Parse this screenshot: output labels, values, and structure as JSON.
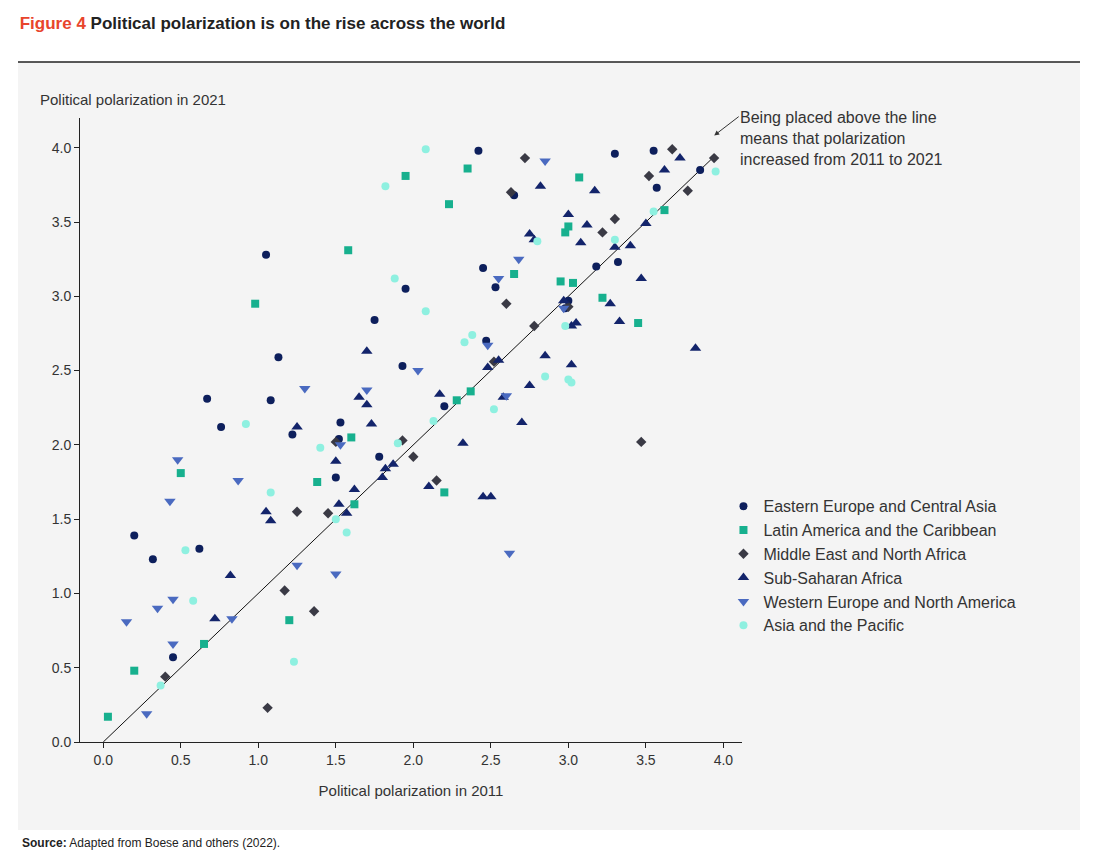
{
  "chart_data": {
    "type": "scatter",
    "figure_label": "Figure 4",
    "title": "Political polarization is on the rise across the world",
    "x_label": "Political polarization in 2011",
    "y_label": "Political polarization in 2021",
    "annotations": [
      {
        "text_lines": [
          "Being placed above the line",
          "means that polarization",
          "increased from 2011 to 2021"
        ]
      }
    ],
    "source_label": "Source:",
    "source": "Adapted from Boese and others (2022).",
    "reference_line": {
      "x": [
        0,
        3.95
      ],
      "y": [
        0,
        3.95
      ]
    },
    "xlim": [
      -0.15,
      4.12
    ],
    "ylim": [
      0,
      4.2
    ],
    "xticks": [
      {
        "value": 0,
        "label": "0.0"
      },
      0.5,
      {
        "value": 1,
        "label": "1.0"
      },
      1.5,
      {
        "value": 2,
        "label": "2.0"
      },
      2.5,
      {
        "value": 3,
        "label": "3.0"
      },
      3.5,
      {
        "value": 4,
        "label": "4.0"
      }
    ],
    "yticks": [
      {
        "value": 0,
        "label": "0.0"
      },
      0.5,
      {
        "value": 1,
        "label": "1.0"
      },
      1.5,
      {
        "value": 2,
        "label": "2.0"
      },
      2.5,
      {
        "value": 3,
        "label": "3.0"
      },
      3.5,
      {
        "value": 4,
        "label": "4.0"
      }
    ],
    "grid": false,
    "legend": "right",
    "series": [
      {
        "name": "Eastern Europe and Central Asia",
        "color": "#0d1f5c",
        "marker": "circle",
        "x": [
          0.2,
          0.32,
          0.62,
          0.45,
          0.67,
          0.76,
          1.05,
          1.08,
          1.13,
          1.22,
          1.5,
          1.53,
          1.52,
          1.75,
          1.78,
          1.93,
          1.95,
          2.2,
          2.42,
          2.45,
          2.47,
          2.53,
          2.65,
          2.98,
          3.0,
          3.18,
          3.3,
          3.32,
          3.55,
          3.57,
          3.85
        ],
        "y": [
          1.39,
          1.23,
          1.3,
          0.57,
          2.31,
          2.12,
          3.28,
          2.3,
          2.59,
          2.07,
          1.78,
          2.15,
          2.04,
          2.84,
          1.92,
          2.53,
          3.05,
          2.26,
          3.98,
          3.19,
          2.7,
          3.06,
          3.68,
          2.92,
          2.97,
          3.2,
          3.96,
          3.23,
          3.98,
          3.73,
          3.85
        ]
      },
      {
        "name": "Latin America and the Caribbean",
        "color": "#17b08e",
        "marker": "square",
        "x": [
          0.03,
          0.2,
          0.5,
          0.65,
          0.98,
          1.2,
          1.38,
          1.58,
          1.6,
          1.62,
          1.95,
          2.2,
          2.23,
          2.28,
          2.35,
          2.37,
          2.65,
          2.95,
          2.98,
          3.0,
          3.03,
          3.07,
          3.22,
          3.45,
          3.62
        ],
        "y": [
          0.17,
          0.48,
          1.81,
          0.66,
          2.95,
          0.82,
          1.75,
          3.31,
          2.05,
          1.6,
          3.81,
          1.68,
          3.62,
          2.3,
          3.86,
          2.36,
          3.15,
          3.1,
          3.43,
          3.47,
          3.09,
          3.8,
          2.99,
          2.82,
          3.58
        ]
      },
      {
        "name": "Middle East and North Africa",
        "color": "#3a3a45",
        "marker": "diamond",
        "x": [
          0.4,
          1.06,
          1.17,
          1.25,
          1.36,
          1.5,
          1.45,
          1.93,
          2.0,
          2.15,
          2.52,
          2.6,
          2.63,
          2.78,
          2.72,
          3.0,
          3.22,
          3.3,
          3.47,
          3.52,
          3.67,
          3.77,
          3.94
        ],
        "y": [
          0.44,
          0.23,
          1.02,
          1.55,
          0.88,
          2.02,
          1.54,
          2.03,
          1.92,
          1.76,
          2.56,
          2.95,
          3.7,
          2.8,
          3.93,
          2.93,
          3.43,
          3.52,
          2.02,
          3.81,
          3.99,
          3.71,
          3.93
        ]
      },
      {
        "name": "Sub-Saharan Africa",
        "color": "#13246b",
        "marker": "triangle-up",
        "x": [
          0.82,
          0.72,
          1.05,
          1.08,
          1.25,
          1.5,
          1.52,
          1.57,
          1.62,
          1.65,
          1.7,
          1.7,
          1.73,
          1.87,
          1.8,
          1.82,
          2.1,
          2.17,
          2.32,
          2.45,
          2.5,
          2.48,
          2.55,
          2.58,
          2.7,
          2.75,
          2.75,
          2.82,
          2.85,
          2.97,
          3.0,
          3.02,
          3.02,
          3.05,
          3.08,
          3.12,
          3.17,
          3.3,
          3.27,
          3.33,
          3.4,
          3.47,
          3.5,
          3.62,
          3.72,
          3.82,
          2.78
        ],
        "y": [
          1.12,
          0.83,
          1.55,
          1.49,
          2.12,
          1.89,
          1.6,
          1.54,
          1.7,
          2.32,
          2.63,
          2.27,
          2.14,
          1.87,
          1.78,
          1.84,
          1.72,
          2.34,
          2.01,
          1.65,
          1.65,
          2.52,
          2.57,
          2.32,
          2.15,
          3.42,
          2.4,
          3.74,
          2.6,
          2.97,
          3.55,
          2.8,
          2.54,
          2.82,
          3.36,
          3.48,
          3.71,
          3.33,
          2.95,
          2.83,
          3.34,
          3.12,
          3.49,
          3.85,
          3.93,
          2.65,
          3.38
        ]
      },
      {
        "name": "Western Europe and North America",
        "color": "#4a6ac0",
        "marker": "triangle-down",
        "x": [
          0.15,
          0.28,
          0.35,
          0.45,
          0.45,
          0.43,
          0.48,
          0.87,
          0.83,
          1.25,
          1.3,
          1.5,
          1.7,
          2.03,
          2.48,
          2.55,
          2.6,
          2.62,
          2.68,
          2.85,
          2.97,
          1.53
        ],
        "y": [
          0.81,
          0.19,
          0.9,
          0.96,
          0.66,
          1.62,
          1.9,
          1.76,
          0.83,
          1.19,
          2.38,
          1.13,
          2.37,
          2.5,
          2.67,
          3.12,
          2.33,
          1.27,
          3.25,
          3.91,
          2.92,
          2.0
        ]
      },
      {
        "name": "Asia and the Pacific",
        "color": "#8ef0e0",
        "marker": "circle",
        "x": [
          0.37,
          0.53,
          0.58,
          0.92,
          1.08,
          1.23,
          1.4,
          1.57,
          1.82,
          1.88,
          1.9,
          2.08,
          2.08,
          2.13,
          2.33,
          2.38,
          2.52,
          2.8,
          2.85,
          2.98,
          3.0,
          3.02,
          3.3,
          3.55,
          3.95,
          1.5
        ],
        "y": [
          0.38,
          1.29,
          0.95,
          2.14,
          1.68,
          0.54,
          1.98,
          1.41,
          3.74,
          3.12,
          2.01,
          2.9,
          3.99,
          2.16,
          2.69,
          2.74,
          2.24,
          3.37,
          2.46,
          2.8,
          2.44,
          2.42,
          3.38,
          3.57,
          3.84,
          1.5
        ]
      }
    ]
  }
}
